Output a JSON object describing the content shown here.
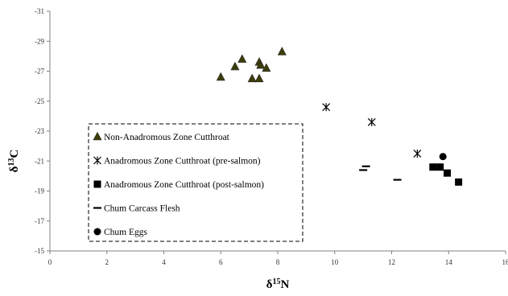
{
  "chart_data": {
    "type": "scatter",
    "xlabel": {
      "main": "δ",
      "sup": "15",
      "tail": "N"
    },
    "ylabel": {
      "main": "δ",
      "sup": "13",
      "tail": "C"
    },
    "xlim": [
      0,
      16
    ],
    "ylim": [
      -15,
      -31
    ],
    "y_reversed": true,
    "x_ticks": [
      "0",
      "2",
      "4",
      "6",
      "8",
      "10",
      "12",
      "14",
      "16"
    ],
    "y_ticks": [
      "-15",
      "-17",
      "-19",
      "-21",
      "-23",
      "-25",
      "-27",
      "-29",
      "-31"
    ],
    "grid": false,
    "legend": {
      "position": "bottom-left",
      "border": "dashed"
    },
    "series": [
      {
        "name": "Non-Anadromous Zone Cutthroat",
        "marker": "triangle",
        "color": "#3d3d0a",
        "points": [
          {
            "x": 6.0,
            "y": -26.6
          },
          {
            "x": 6.5,
            "y": -27.3
          },
          {
            "x": 6.75,
            "y": -27.8
          },
          {
            "x": 7.1,
            "y": -26.5
          },
          {
            "x": 7.35,
            "y": -27.6
          },
          {
            "x": 7.4,
            "y": -27.4
          },
          {
            "x": 7.35,
            "y": -26.5
          },
          {
            "x": 7.6,
            "y": -27.2
          },
          {
            "x": 8.15,
            "y": -28.3
          }
        ]
      },
      {
        "name": "Anadromous Zone Cutthroat (pre-salmon)",
        "marker": "star",
        "color": "#000000",
        "points": [
          {
            "x": 9.7,
            "y": -24.6
          },
          {
            "x": 11.3,
            "y": -23.6
          },
          {
            "x": 12.9,
            "y": -21.5
          }
        ]
      },
      {
        "name": "Anadromous Zone Cutthroat (post-salmon)",
        "marker": "square",
        "color": "#000000",
        "points": [
          {
            "x": 13.45,
            "y": -20.6
          },
          {
            "x": 13.7,
            "y": -20.6
          },
          {
            "x": 13.95,
            "y": -20.2
          },
          {
            "x": 14.35,
            "y": -19.6
          }
        ]
      },
      {
        "name": "Chum Carcass Flesh",
        "marker": "dash",
        "color": "#000000",
        "points": [
          {
            "x": 11.0,
            "y": -20.4
          },
          {
            "x": 11.1,
            "y": -20.65
          },
          {
            "x": 12.2,
            "y": -19.75
          }
        ]
      },
      {
        "name": "Chum Eggs",
        "marker": "circle",
        "color": "#000000",
        "points": [
          {
            "x": 13.8,
            "y": -21.3
          }
        ]
      }
    ]
  }
}
